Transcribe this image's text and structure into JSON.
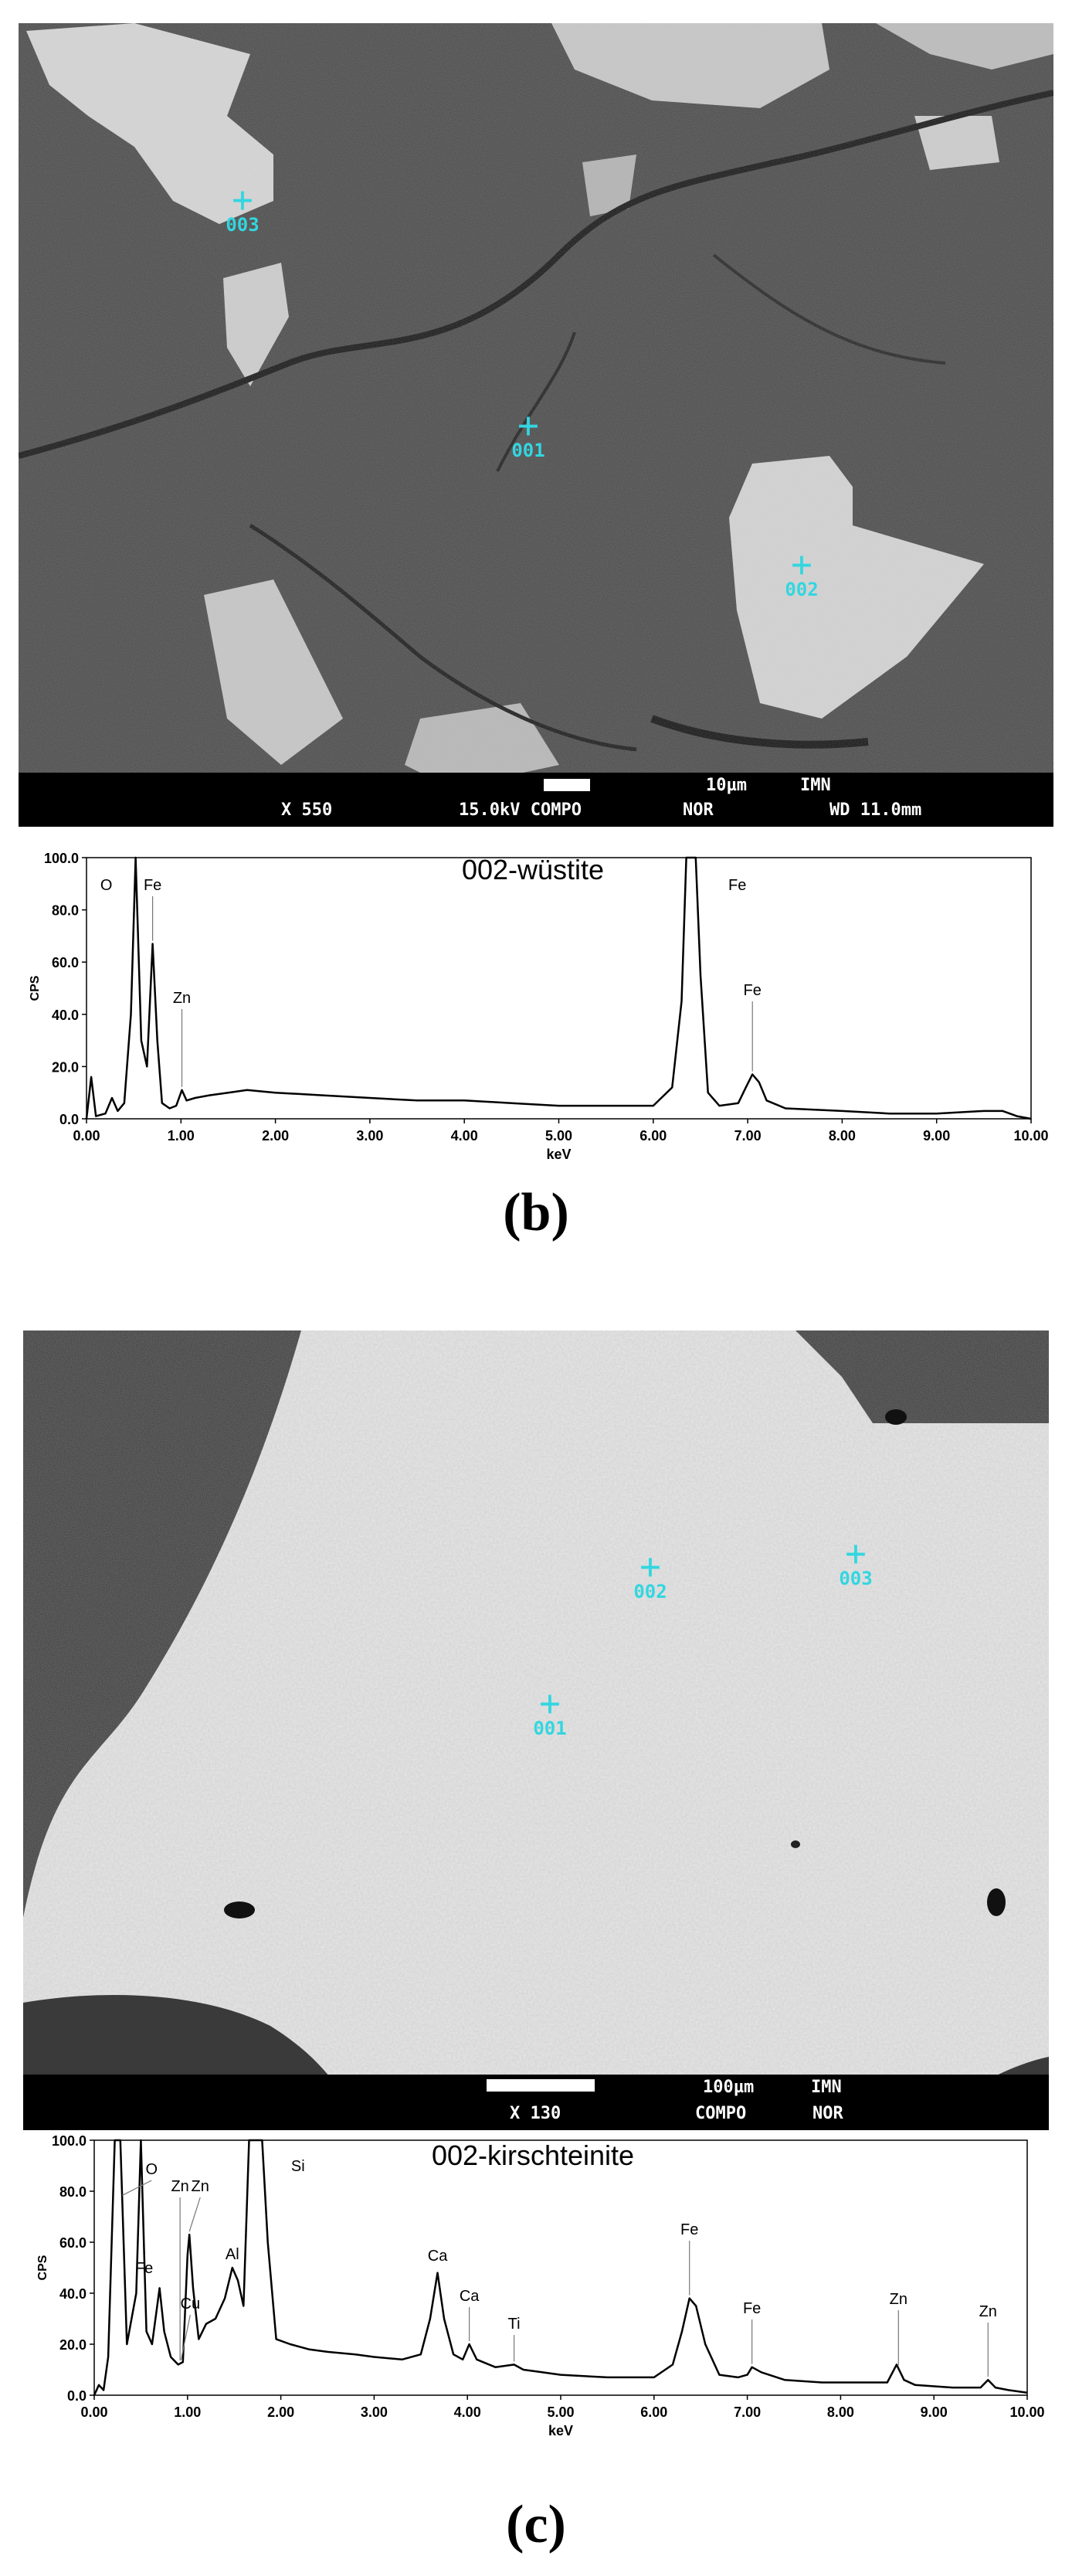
{
  "panel_b": {
    "image": {
      "markers": [
        {
          "label": "003"
        },
        {
          "label": "001"
        },
        {
          "label": "002"
        }
      ],
      "info_bar": {
        "scale_text": "10µm",
        "institution": "IMN",
        "magnification": "X 550",
        "voltage_mode": "15.0kV COMPO",
        "mode2": "NOR",
        "working_distance": "WD 11.0mm"
      }
    },
    "spectrum_title": "002-wüstite"
  },
  "panel_c": {
    "image": {
      "markers": [
        {
          "label": "002"
        },
        {
          "label": "003"
        },
        {
          "label": "001"
        }
      ],
      "info_bar": {
        "scale_text": "100µm",
        "institution": "IMN",
        "magnification": "X 130",
        "mode": "COMPO",
        "mode2": "NOR"
      }
    },
    "spectrum_title": "002-kirschteinite"
  },
  "chart_data": [
    {
      "type": "line",
      "title": "002-wüstite",
      "xlabel": "keV",
      "ylabel": "CPS",
      "xlim": [
        0,
        10
      ],
      "ylim": [
        0,
        100
      ],
      "x_ticks": [
        "0.00",
        "1.00",
        "2.00",
        "3.00",
        "4.00",
        "5.00",
        "6.00",
        "7.00",
        "8.00",
        "9.00",
        "10.00"
      ],
      "y_ticks": [
        "0.0",
        "20.0",
        "40.0",
        "60.0",
        "80.0",
        "100.0"
      ],
      "grid": false,
      "series": [
        {
          "x": [
            0,
            0.05,
            0.1,
            0.2,
            0.27,
            0.33,
            0.4,
            0.47,
            0.52,
            0.58,
            0.64,
            0.7,
            0.75,
            0.8,
            0.88,
            0.95,
            1.01,
            1.06,
            1.15,
            1.3,
            1.5,
            1.7,
            2.0,
            2.5,
            3.0,
            3.5,
            4.0,
            4.5,
            5.0,
            5.5,
            6.0,
            6.2,
            6.3,
            6.35,
            6.4,
            6.45,
            6.5,
            6.58,
            6.7,
            6.9,
            6.98,
            7.05,
            7.12,
            7.2,
            7.4,
            8.0,
            8.5,
            9.0,
            9.5,
            9.7,
            9.85,
            10.0
          ],
          "y": [
            0,
            16,
            1,
            2,
            8,
            3,
            6,
            40,
            100,
            30,
            20,
            67,
            30,
            6,
            4,
            5,
            11,
            7,
            8,
            9,
            10,
            11,
            10,
            9,
            8,
            7,
            7,
            6,
            5,
            5,
            5,
            12,
            45,
            100,
            100,
            100,
            55,
            10,
            5,
            6,
            12,
            17,
            14,
            7,
            4,
            3,
            2,
            2,
            3,
            3,
            1,
            0
          ]
        }
      ],
      "annotations": [
        {
          "label": "O",
          "x": 0.52
        },
        {
          "label": "Fe",
          "x": 0.7
        },
        {
          "label": "Zn",
          "x": 1.01
        },
        {
          "label": "Fe",
          "x": 6.4
        },
        {
          "label": "Fe",
          "x": 7.05
        }
      ]
    },
    {
      "type": "line",
      "title": "002-kirschteinite",
      "xlabel": "keV",
      "ylabel": "CPS",
      "xlim": [
        0,
        10
      ],
      "ylim": [
        0,
        100
      ],
      "x_ticks": [
        "0.00",
        "1.00",
        "2.00",
        "3.00",
        "4.00",
        "5.00",
        "6.00",
        "7.00",
        "8.00",
        "9.00",
        "10.00"
      ],
      "y_ticks": [
        "0.0",
        "20.0",
        "40.0",
        "60.0",
        "80.0",
        "100.0"
      ],
      "grid": false,
      "series": [
        {
          "x": [
            0,
            0.05,
            0.1,
            0.15,
            0.22,
            0.28,
            0.35,
            0.45,
            0.5,
            0.56,
            0.62,
            0.7,
            0.75,
            0.82,
            0.9,
            0.95,
            1.0,
            1.02,
            1.06,
            1.12,
            1.2,
            1.3,
            1.4,
            1.48,
            1.54,
            1.6,
            1.66,
            1.72,
            1.8,
            1.86,
            1.95,
            2.1,
            2.3,
            2.5,
            2.8,
            3.0,
            3.3,
            3.5,
            3.6,
            3.68,
            3.75,
            3.85,
            3.95,
            4.02,
            4.1,
            4.3,
            4.5,
            4.6,
            4.8,
            5.0,
            5.5,
            6.0,
            6.2,
            6.3,
            6.38,
            6.45,
            6.55,
            6.7,
            6.9,
            7.0,
            7.05,
            7.15,
            7.4,
            7.8,
            8.2,
            8.5,
            8.6,
            8.68,
            8.8,
            9.2,
            9.5,
            9.58,
            9.66,
            9.8,
            10.0
          ],
          "y": [
            0,
            4,
            2,
            15,
            100,
            100,
            20,
            40,
            100,
            25,
            20,
            42,
            25,
            15,
            12,
            13,
            55,
            63,
            42,
            22,
            28,
            30,
            38,
            50,
            45,
            35,
            100,
            100,
            100,
            60,
            22,
            20,
            18,
            17,
            16,
            15,
            14,
            16,
            30,
            48,
            30,
            16,
            14,
            20,
            14,
            11,
            12,
            10,
            9,
            8,
            7,
            7,
            12,
            25,
            38,
            35,
            20,
            8,
            7,
            8,
            11,
            9,
            6,
            5,
            5,
            5,
            12,
            6,
            4,
            3,
            3,
            6,
            3,
            2,
            1
          ]
        }
      ],
      "annotations": [
        {
          "label": "O",
          "x": 0.3
        },
        {
          "label": "Zn",
          "x": 0.92
        },
        {
          "label": "Zn",
          "x": 1.02
        },
        {
          "label": "Si",
          "x": 1.72
        },
        {
          "label": "Fe",
          "x": 0.7
        },
        {
          "label": "Cu",
          "x": 0.93
        },
        {
          "label": "Al",
          "x": 1.48
        },
        {
          "label": "Ca",
          "x": 3.68
        },
        {
          "label": "Ca",
          "x": 4.02
        },
        {
          "label": "Ti",
          "x": 4.5
        },
        {
          "label": "Fe",
          "x": 6.38
        },
        {
          "label": "Fe",
          "x": 7.05
        },
        {
          "label": "Zn",
          "x": 8.62
        },
        {
          "label": "Zn",
          "x": 9.58
        }
      ]
    }
  ],
  "captions": {
    "b": "(b)",
    "c": "(c)"
  }
}
